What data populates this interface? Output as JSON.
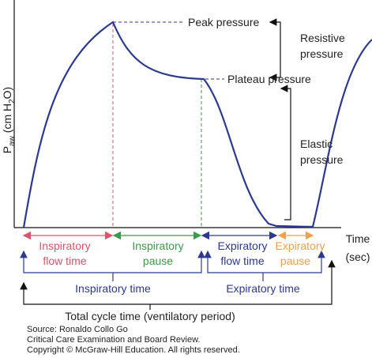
{
  "axis": {
    "y_label": {
      "p": "P",
      "sub": "aw",
      "mid": " (cm H",
      "sub2": "2",
      "end": "O)"
    },
    "x_label": [
      "Time",
      "(sec)"
    ]
  },
  "annotations": {
    "peak": "Peak pressure",
    "plateau": "Plateau pressure",
    "resistive": [
      "Resistive",
      "pressure"
    ],
    "elastic": [
      "Elastic",
      "pressure"
    ]
  },
  "phases": [
    {
      "label": [
        "Inspiratory",
        "flow time"
      ]
    },
    {
      "label": [
        "Inspiratory",
        "pause"
      ]
    },
    {
      "label": [
        "Expiratory",
        "flow time"
      ]
    },
    {
      "label": [
        "Expiratory",
        "pause"
      ]
    }
  ],
  "spans": {
    "inspiratory": "Inspiratory time",
    "expiratory": "Expiratory time",
    "total": "Total cycle time (ventilatory period)"
  },
  "source": [
    "Source: Ronaldo Collo Go",
    "Critical Care Examination and Board Review.",
    "Copyright © McGraw-Hill Education. All rights reserved."
  ]
}
